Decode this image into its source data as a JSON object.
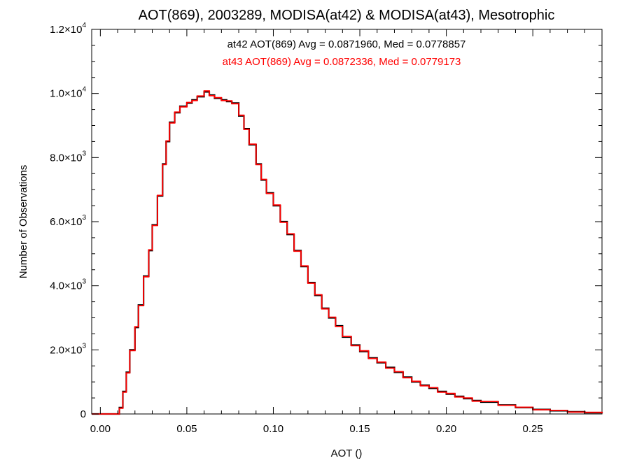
{
  "chart_data": {
    "type": "line",
    "title": "AOT(869), 2003289, MODISA(at42) & MODISA(at43), Mesotrophic",
    "xlabel": "AOT ()",
    "ylabel": "Number of Observations",
    "xlim": [
      -0.005,
      0.29
    ],
    "ylim": [
      0,
      12000
    ],
    "x_ticks": [
      {
        "value": 0.0,
        "label": "0.00"
      },
      {
        "value": 0.05,
        "label": "0.05"
      },
      {
        "value": 0.1,
        "label": "0.10"
      },
      {
        "value": 0.15,
        "label": "0.15"
      },
      {
        "value": 0.2,
        "label": "0.20"
      },
      {
        "value": 0.25,
        "label": "0.25"
      }
    ],
    "y_ticks": [
      {
        "value": 0,
        "mantissa": "0",
        "exponent": ""
      },
      {
        "value": 2000,
        "mantissa": "2.0×10",
        "exponent": "3"
      },
      {
        "value": 4000,
        "mantissa": "4.0×10",
        "exponent": "3"
      },
      {
        "value": 6000,
        "mantissa": "6.0×10",
        "exponent": "3"
      },
      {
        "value": 8000,
        "mantissa": "8.0×10",
        "exponent": "3"
      },
      {
        "value": 10000,
        "mantissa": "1.0×10",
        "exponent": "4"
      },
      {
        "value": 12000,
        "mantissa": "1.2×10",
        "exponent": "4"
      }
    ],
    "annotations": [
      {
        "text": "at42 AOT(869) Avg = 0.0871960, Med = 0.0778857",
        "color": "#000000"
      },
      {
        "text": "at43 AOT(869) Avg = 0.0872336, Med = 0.0779173",
        "color": "#ff0000"
      }
    ],
    "step": true,
    "grid": false,
    "series": [
      {
        "color": "#000000",
        "x": [
          -0.005,
          0.0,
          0.005,
          0.009,
          0.011,
          0.013,
          0.015,
          0.017,
          0.02,
          0.022,
          0.025,
          0.028,
          0.03,
          0.033,
          0.036,
          0.038,
          0.04,
          0.043,
          0.046,
          0.05,
          0.053,
          0.056,
          0.06,
          0.063,
          0.066,
          0.07,
          0.073,
          0.076,
          0.08,
          0.083,
          0.086,
          0.09,
          0.093,
          0.096,
          0.1,
          0.104,
          0.108,
          0.112,
          0.116,
          0.12,
          0.124,
          0.128,
          0.132,
          0.136,
          0.14,
          0.145,
          0.15,
          0.155,
          0.16,
          0.165,
          0.17,
          0.175,
          0.18,
          0.185,
          0.19,
          0.195,
          0.2,
          0.205,
          0.21,
          0.215,
          0.22,
          0.23,
          0.24,
          0.25,
          0.26,
          0.27,
          0.28,
          0.29
        ],
        "y": [
          0,
          0,
          0,
          0,
          200,
          700,
          1300,
          2000,
          2700,
          3400,
          4300,
          5100,
          5900,
          6800,
          7800,
          8500,
          9100,
          9400,
          9600,
          9700,
          9800,
          9900,
          10050,
          9950,
          9850,
          9800,
          9750,
          9700,
          9300,
          8900,
          8400,
          7800,
          7300,
          6900,
          6500,
          6000,
          5600,
          5100,
          4600,
          4100,
          3700,
          3300,
          3000,
          2750,
          2400,
          2150,
          1950,
          1750,
          1600,
          1450,
          1300,
          1150,
          1000,
          900,
          800,
          700,
          620,
          550,
          480,
          420,
          370,
          280,
          200,
          140,
          100,
          70,
          40,
          20
        ]
      },
      {
        "color": "#ff0000",
        "x": [
          -0.005,
          0.0,
          0.005,
          0.009,
          0.011,
          0.013,
          0.015,
          0.017,
          0.02,
          0.022,
          0.025,
          0.028,
          0.03,
          0.033,
          0.036,
          0.038,
          0.04,
          0.043,
          0.046,
          0.05,
          0.053,
          0.056,
          0.06,
          0.063,
          0.066,
          0.07,
          0.073,
          0.076,
          0.08,
          0.083,
          0.086,
          0.09,
          0.093,
          0.096,
          0.1,
          0.104,
          0.108,
          0.112,
          0.116,
          0.12,
          0.124,
          0.128,
          0.132,
          0.136,
          0.14,
          0.145,
          0.15,
          0.155,
          0.16,
          0.165,
          0.17,
          0.175,
          0.18,
          0.185,
          0.19,
          0.195,
          0.2,
          0.205,
          0.21,
          0.215,
          0.22,
          0.23,
          0.24,
          0.25,
          0.26,
          0.27,
          0.28,
          0.29
        ],
        "y": [
          0,
          0,
          0,
          0,
          180,
          680,
          1280,
          1980,
          2720,
          3380,
          4280,
          5120,
          5880,
          6820,
          7780,
          8520,
          9080,
          9420,
          9580,
          9720,
          9780,
          9920,
          10080,
          9930,
          9870,
          9780,
          9770,
          9680,
          9320,
          8880,
          8420,
          7780,
          7320,
          6880,
          6520,
          5980,
          5620,
          5080,
          4620,
          4080,
          3720,
          3280,
          3020,
          2730,
          2420,
          2130,
          1970,
          1730,
          1620,
          1430,
          1320,
          1130,
          1020,
          880,
          820,
          680,
          640,
          530,
          500,
          400,
          390,
          270,
          210,
          130,
          110,
          60,
          50,
          20
        ]
      }
    ]
  }
}
